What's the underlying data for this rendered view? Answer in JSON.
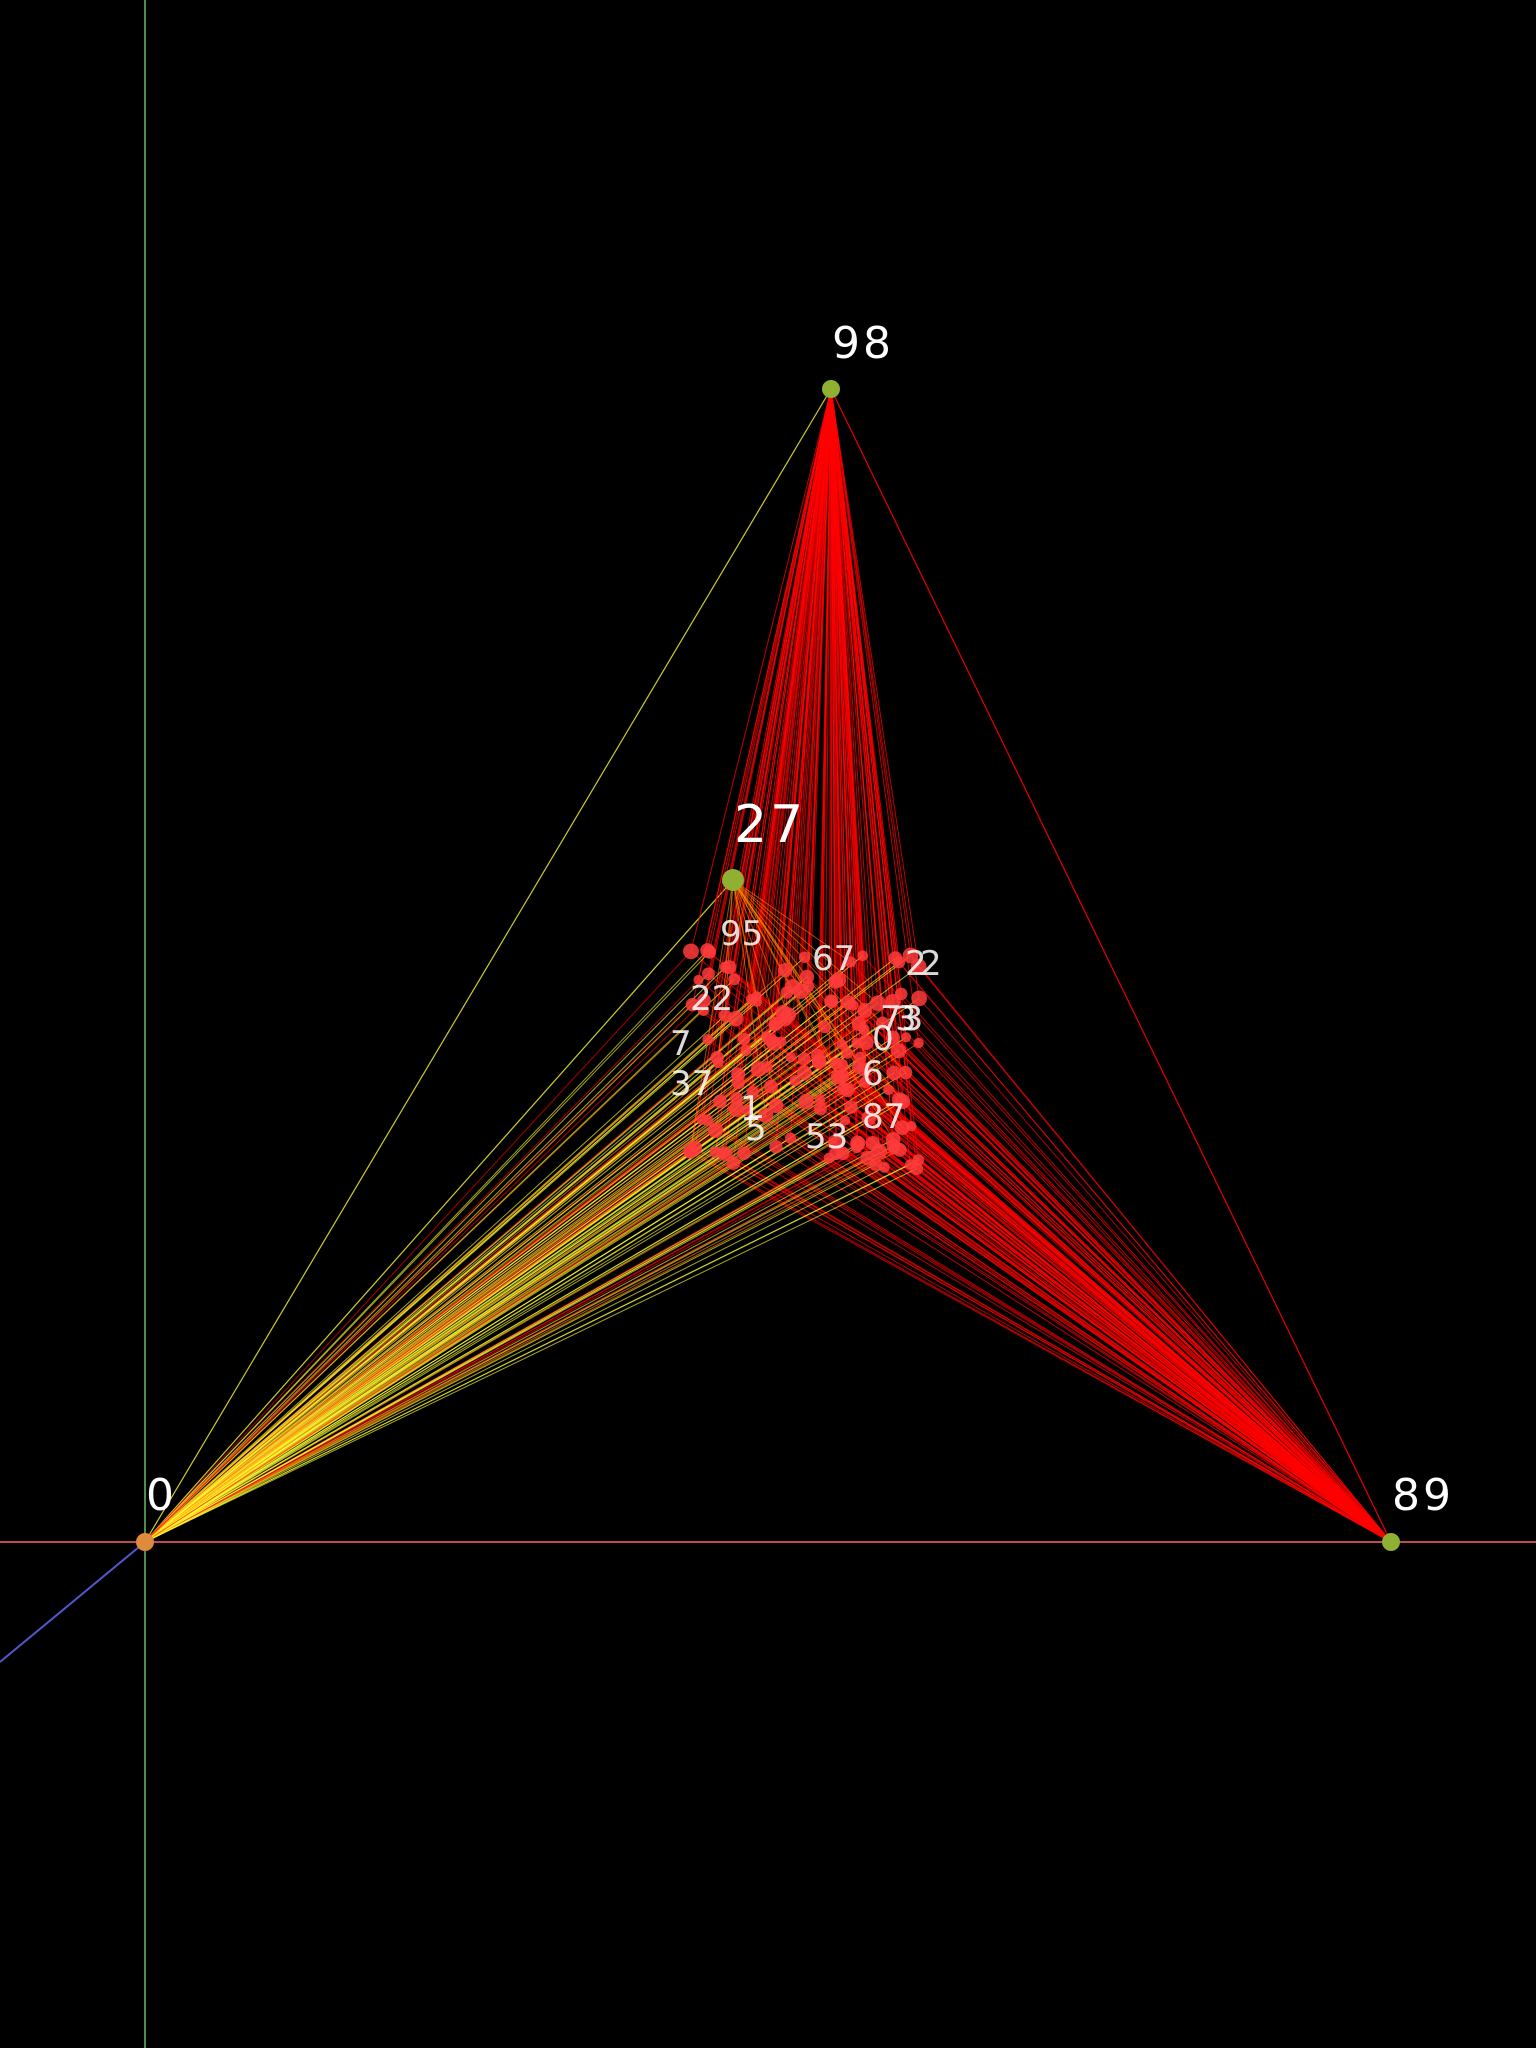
{
  "scene": {
    "background": "#000000",
    "axis_colors": {
      "x": "#ff6666",
      "y": "#66bb66",
      "z": "#5555cc"
    },
    "anchor_nodes": [
      {
        "id": "98",
        "label": "98",
        "color": "#8fb030"
      },
      {
        "id": "27",
        "label": "27",
        "color": "#8fb030"
      },
      {
        "id": "0",
        "label": "0",
        "color": "#e08a3c"
      },
      {
        "id": "89",
        "label": "89",
        "color": "#8fb030"
      }
    ],
    "edge_colors": {
      "primary": "#ff0000",
      "secondary": "#ffff33",
      "tertiary": "#ff8800"
    },
    "cluster_node_color": "#ff3b3b",
    "cluster_labels": [
      "95",
      "67",
      "73",
      "2",
      "0",
      "6",
      "87",
      "5",
      "53",
      "22",
      "7",
      "37",
      "1",
      "2",
      "3"
    ]
  }
}
